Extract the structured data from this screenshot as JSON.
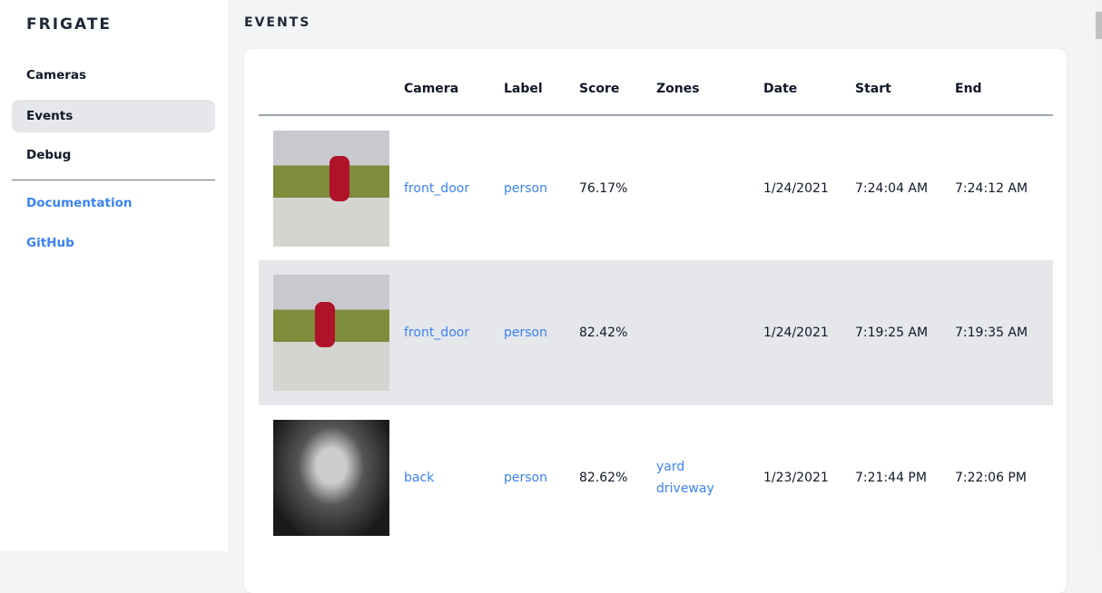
{
  "sidebar": {
    "brand": "FRIGATE",
    "items": [
      {
        "label": "Cameras"
      },
      {
        "label": "Events"
      },
      {
        "label": "Debug"
      }
    ],
    "links": [
      {
        "label": "Documentation"
      },
      {
        "label": "GitHub"
      }
    ]
  },
  "page": {
    "title": "EVENTS"
  },
  "table": {
    "headers": [
      "",
      "Camera",
      "Label",
      "Score",
      "Zones",
      "Date",
      "Start",
      "End"
    ],
    "rows": [
      {
        "camera": "front_door",
        "label": "person",
        "score": "76.17%",
        "zones": [
          "",
          ""
        ],
        "date": "1/24/2021",
        "start": "7:24:04 AM",
        "end": "7:24:12 AM"
      },
      {
        "camera": "front_door",
        "label": "person",
        "score": "82.42%",
        "zones": [
          "",
          ""
        ],
        "date": "1/24/2021",
        "start": "7:19:25 AM",
        "end": "7:19:35 AM"
      },
      {
        "camera": "back",
        "label": "person",
        "score": "82.62%",
        "zones": [
          "yard",
          "driveway"
        ],
        "date": "1/23/2021",
        "start": "7:21:44 PM",
        "end": "7:22:06 PM"
      }
    ]
  },
  "colors": {
    "accent": "#3b82f6",
    "active_bg": "#e5e7eb",
    "page_bg": "#f3f4f6"
  }
}
